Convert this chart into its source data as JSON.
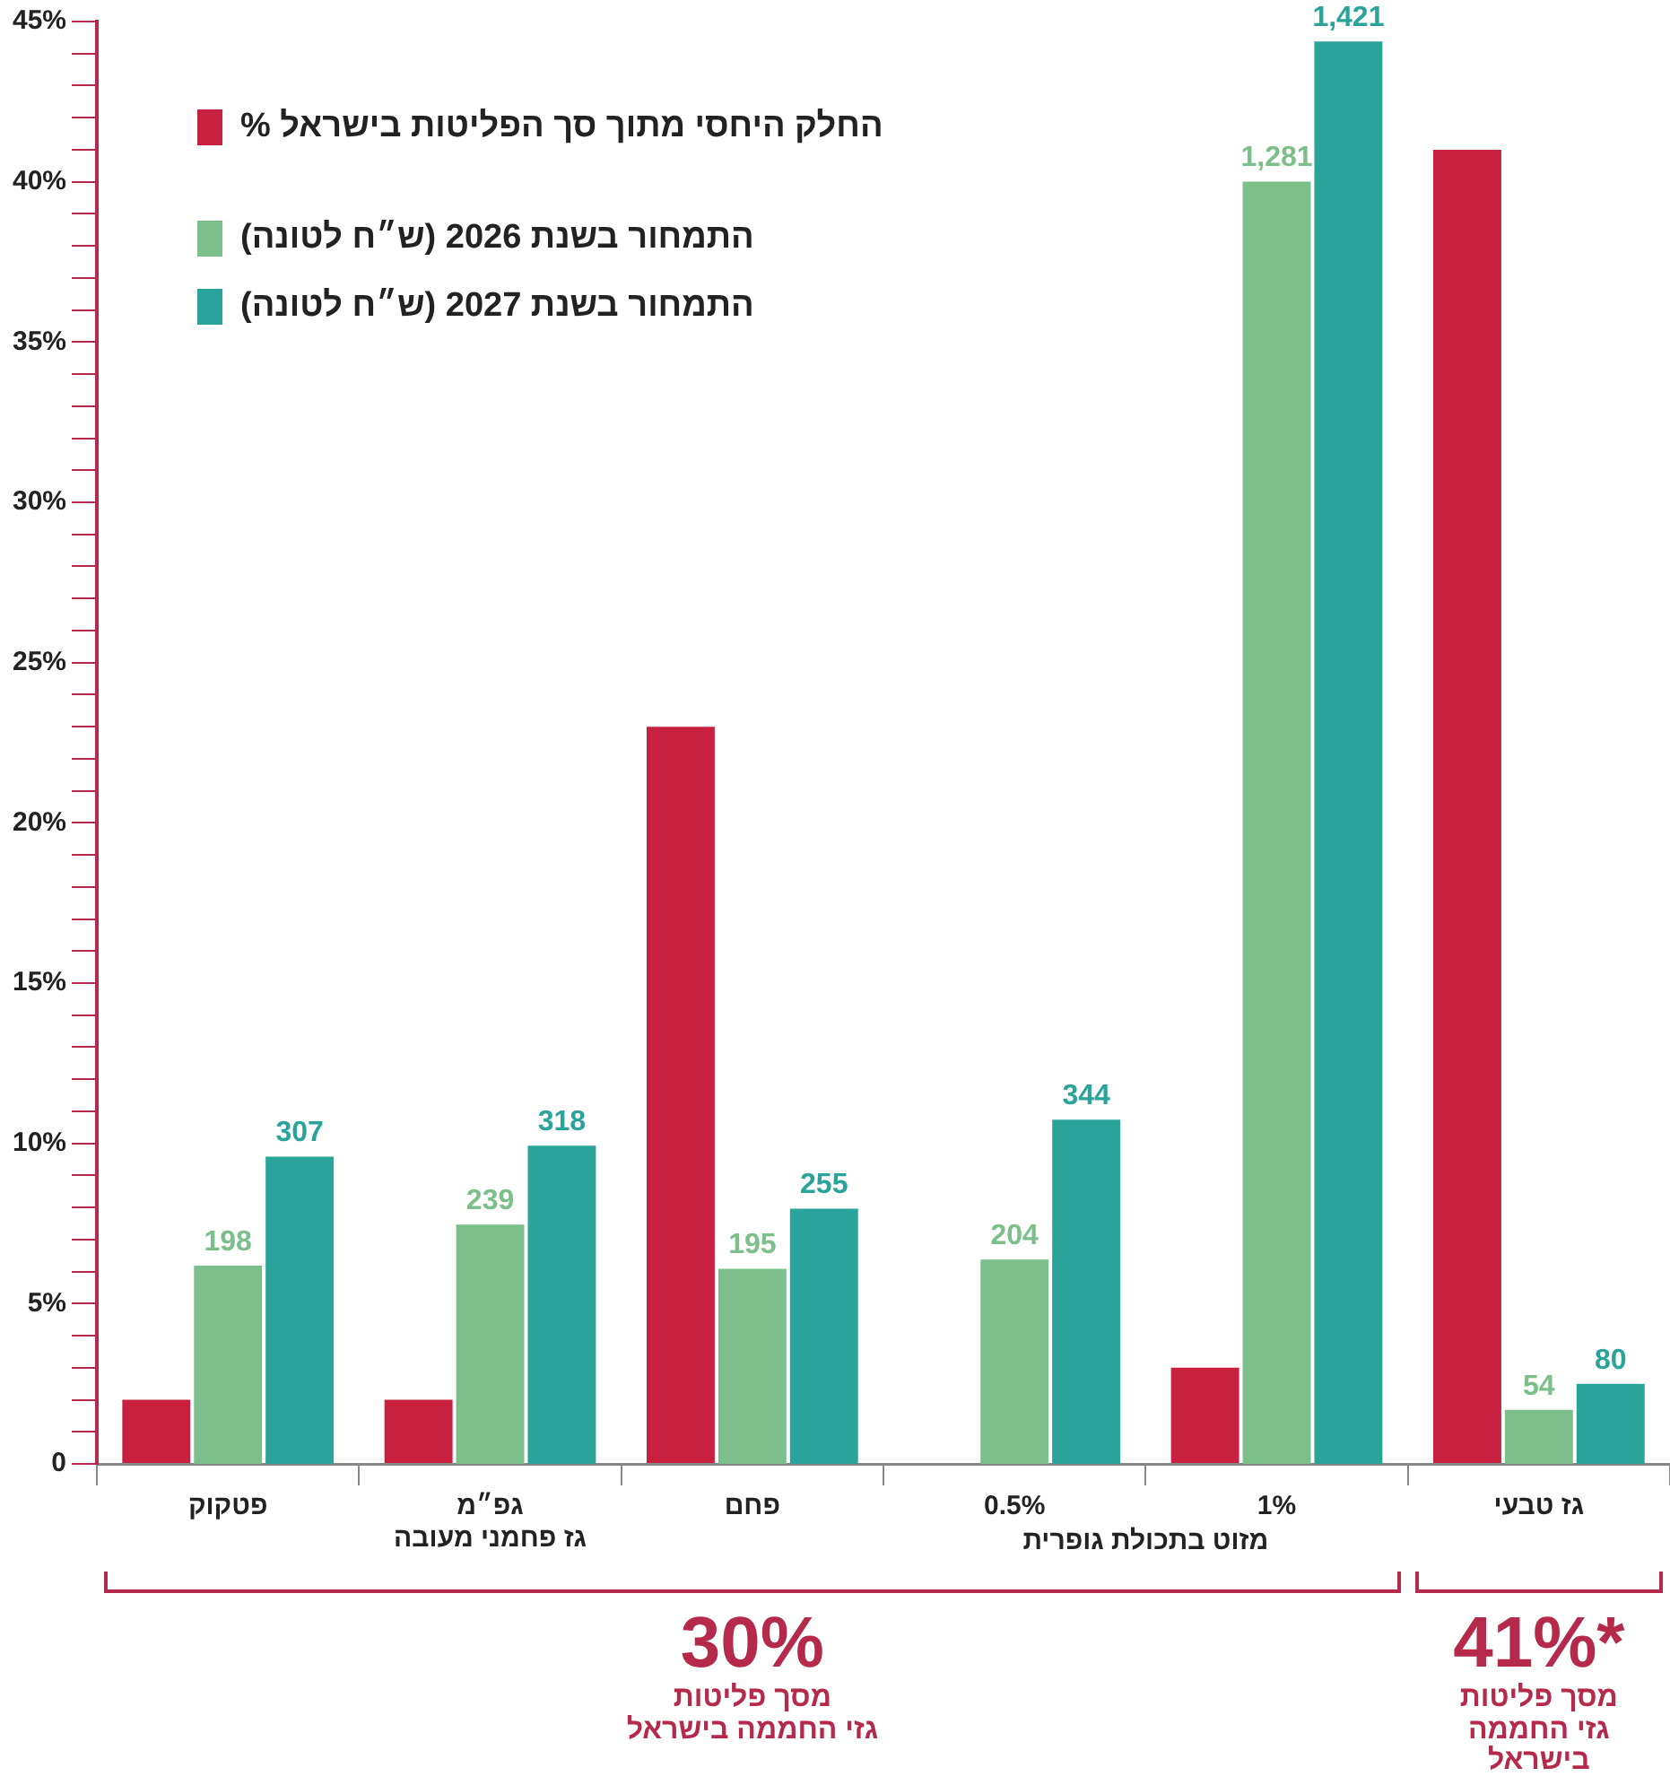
{
  "chart_data": {
    "type": "bar",
    "categories": [
      "פטקוק",
      "גפ״מ\nגז פחמני מעובה",
      "פחם",
      "0.5%",
      "1%",
      "גז טבעי"
    ],
    "series": [
      {
        "name": "החלק היחסי מתוך סך הפליטות בישראל %",
        "color": "#c8203f",
        "values": [
          2,
          2,
          23,
          null,
          3,
          41
        ]
      },
      {
        "name": "התמחור בשנת 2026 (ש״ח לטונה)",
        "color": "#7dbf8a",
        "axis": "y2",
        "values": [
          198,
          239,
          195,
          204,
          1281,
          54
        ],
        "value_labels": [
          "198",
          "239",
          "195",
          "204",
          "1,281",
          "54"
        ]
      },
      {
        "name": "התמחור בשנת 2027 (ש״ח לטונה)",
        "color": "#2aa39a",
        "axis": "y2",
        "values": [
          307,
          318,
          255,
          344,
          1421,
          80
        ],
        "value_labels": [
          "307",
          "318",
          "255",
          "344",
          "1,421",
          "80"
        ]
      }
    ],
    "ylim": [
      0,
      45
    ],
    "yticks": [
      {
        "value": 0,
        "label": "0"
      },
      {
        "value": 1,
        "label": null
      },
      {
        "value": 2,
        "label": null
      },
      {
        "value": 3,
        "label": null
      },
      {
        "value": 4,
        "label": null
      },
      {
        "value": 5,
        "label": "5%"
      },
      {
        "value": 6,
        "label": null
      },
      {
        "value": 7,
        "label": null
      },
      {
        "value": 8,
        "label": null
      },
      {
        "value": 9,
        "label": null
      },
      {
        "value": 10,
        "label": "10%"
      },
      {
        "value": 11,
        "label": null
      },
      {
        "value": 12,
        "label": null
      },
      {
        "value": 13,
        "label": null
      },
      {
        "value": 14,
        "label": null
      },
      {
        "value": 15,
        "label": "15%"
      },
      {
        "value": 16,
        "label": null
      },
      {
        "value": 17,
        "label": null
      },
      {
        "value": 18,
        "label": null
      },
      {
        "value": 19,
        "label": null
      },
      {
        "value": 20,
        "label": "20%"
      },
      {
        "value": 21,
        "label": null
      },
      {
        "value": 22,
        "label": null
      },
      {
        "value": 23,
        "label": null
      },
      {
        "value": 24,
        "label": null
      },
      {
        "value": 25,
        "label": "25%"
      },
      {
        "value": 26,
        "label": null
      },
      {
        "value": 27,
        "label": null
      },
      {
        "value": 28,
        "label": null
      },
      {
        "value": 29,
        "label": null
      },
      {
        "value": 30,
        "label": "30%"
      },
      {
        "value": 31,
        "label": null
      },
      {
        "value": 32,
        "label": null
      },
      {
        "value": 33,
        "label": null
      },
      {
        "value": 34,
        "label": null
      },
      {
        "value": 35,
        "label": "35%"
      },
      {
        "value": 36,
        "label": null
      },
      {
        "value": 37,
        "label": null
      },
      {
        "value": 38,
        "label": null
      },
      {
        "value": 39,
        "label": null
      },
      {
        "value": 40,
        "label": "40%"
      },
      {
        "value": 41,
        "label": null
      },
      {
        "value": 42,
        "label": null
      },
      {
        "value": 43,
        "label": null
      },
      {
        "value": 44,
        "label": null
      },
      {
        "value": 45,
        "label": "45%"
      }
    ],
    "y2lim": [
      0,
      1441
    ],
    "legend": "top left",
    "grid": false,
    "annotations": [
      "מזוט בתכולת גופרית",
      "30%\nמסך פליטות\nגזי החממה בישראל",
      "*41%\nמסך פליטות\nגזי החממה בישראל"
    ]
  }
}
